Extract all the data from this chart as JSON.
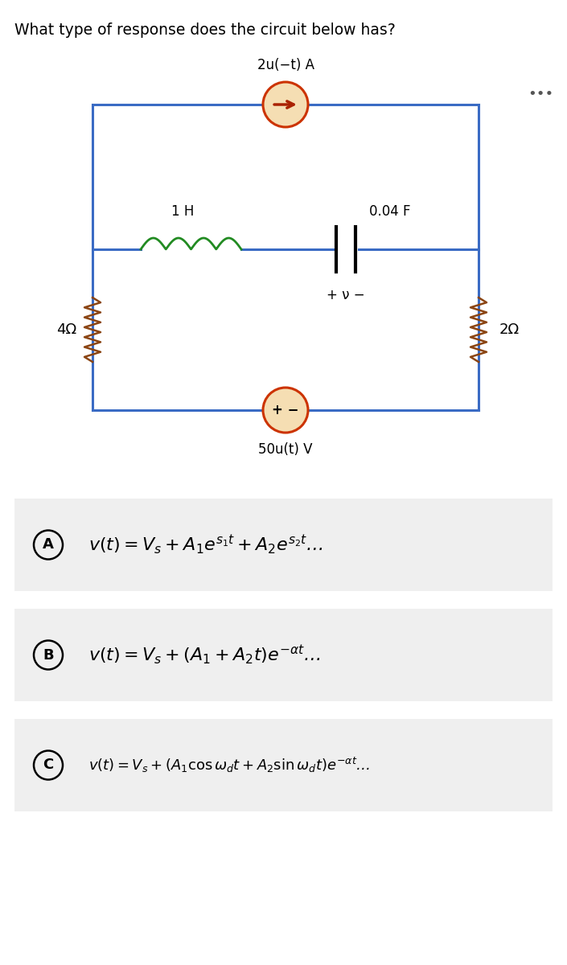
{
  "title": "What type of response does the circuit below has?",
  "title_fontsize": 13.5,
  "background_color": "#ffffff",
  "circuit_line_color": "#3a6bc4",
  "circuit_lw": 2.2,
  "resistor_left_label": "4Ω",
  "resistor_right_label": "2Ω",
  "inductor_label": "1 H",
  "capacitor_label": "0.04 F",
  "current_source_label": "2u(−t) A",
  "voltage_source_label": "50u(t) V",
  "v_label": "+ ν −",
  "dots_label": "•••",
  "option_A_label": "A",
  "option_B_label": "B",
  "option_C_label": "C",
  "option_bg": "#efefef",
  "resistor_color": "#8B4513",
  "inductor_color": "#228B22",
  "source_fill": "#F5DEB3",
  "source_edge": "#cc3300",
  "arrow_color": "#aa2200"
}
